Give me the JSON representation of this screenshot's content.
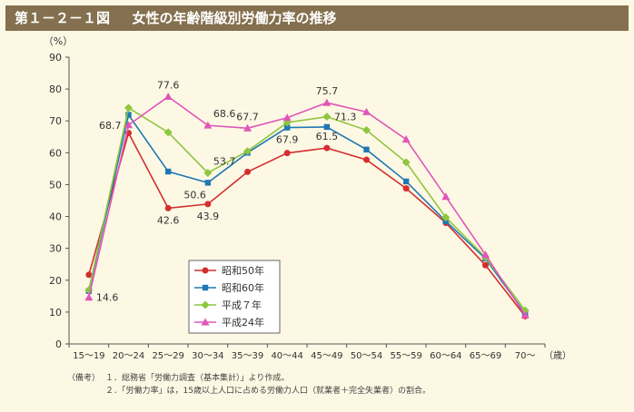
{
  "figure": {
    "number": "第１－２－１図",
    "title": "女性の年齢階級別労働力率の推移"
  },
  "chart_data": {
    "type": "line",
    "title": "女性の年齢階級別労働力率の推移",
    "ylabel": "（%）",
    "xlabel_unit": "（歳）",
    "ylim": [
      0,
      90
    ],
    "yticks": [
      0,
      10,
      20,
      30,
      40,
      50,
      60,
      70,
      80,
      90
    ],
    "categories": [
      "15～19",
      "20～24",
      "25～29",
      "30～34",
      "35～39",
      "40～44",
      "45～49",
      "50～54",
      "55～59",
      "60～64",
      "65～69",
      "70～"
    ],
    "grid": false,
    "legend_position": "bottom-center",
    "series": [
      {
        "name": "昭和50年",
        "color": "#d32f2f",
        "marker": "circle",
        "values": [
          21.7,
          66.2,
          42.6,
          43.9,
          54.0,
          59.9,
          61.5,
          57.8,
          48.8,
          38.0,
          24.7,
          8.7
        ]
      },
      {
        "name": "昭和60年",
        "color": "#1f78b4",
        "marker": "square",
        "values": [
          16.6,
          71.9,
          54.1,
          50.6,
          60.0,
          67.9,
          68.1,
          61.0,
          51.0,
          38.5,
          26.8,
          9.5
        ]
      },
      {
        "name": "平成７年",
        "color": "#8dc63f",
        "marker": "diamond",
        "values": [
          16.9,
          74.1,
          66.4,
          53.7,
          60.5,
          69.5,
          71.3,
          67.1,
          57.0,
          39.7,
          27.2,
          10.5
        ]
      },
      {
        "name": "平成24年",
        "color": "#e056b8",
        "marker": "triangle",
        "values": [
          14.6,
          68.7,
          77.6,
          68.6,
          67.7,
          71.0,
          75.7,
          72.8,
          64.2,
          46.2,
          28.0,
          9.0
        ]
      }
    ],
    "data_labels": [
      {
        "series": 3,
        "index": 0,
        "text": "14.6",
        "pos": "right"
      },
      {
        "series": 3,
        "index": 1,
        "text": "68.7",
        "pos": "left"
      },
      {
        "series": 3,
        "index": 2,
        "text": "77.6",
        "pos": "above"
      },
      {
        "series": 3,
        "index": 3,
        "text": "68.6",
        "pos": "above-right"
      },
      {
        "series": 3,
        "index": 4,
        "text": "67.7",
        "pos": "above"
      },
      {
        "series": 2,
        "index": 3,
        "text": "53.7",
        "pos": "above-right"
      },
      {
        "series": 1,
        "index": 3,
        "text": "50.6",
        "pos": "below-left"
      },
      {
        "series": 0,
        "index": 2,
        "text": "42.6",
        "pos": "below"
      },
      {
        "series": 0,
        "index": 3,
        "text": "43.9",
        "pos": "below"
      },
      {
        "series": 1,
        "index": 5,
        "text": "67.9",
        "pos": "below"
      },
      {
        "series": 3,
        "index": 6,
        "text": "75.7",
        "pos": "above"
      },
      {
        "series": 2,
        "index": 6,
        "text": "71.3",
        "pos": "right"
      },
      {
        "series": 0,
        "index": 6,
        "text": "61.5",
        "pos": "above"
      }
    ]
  },
  "notes": {
    "label": "（備考）",
    "items": [
      "１．総務省「労働力調査（基本集計）」より作成。",
      "２．「労働力率」は，15歳以上人口に占める労働力人口（就業者＋完全失業者）の割合。"
    ]
  }
}
